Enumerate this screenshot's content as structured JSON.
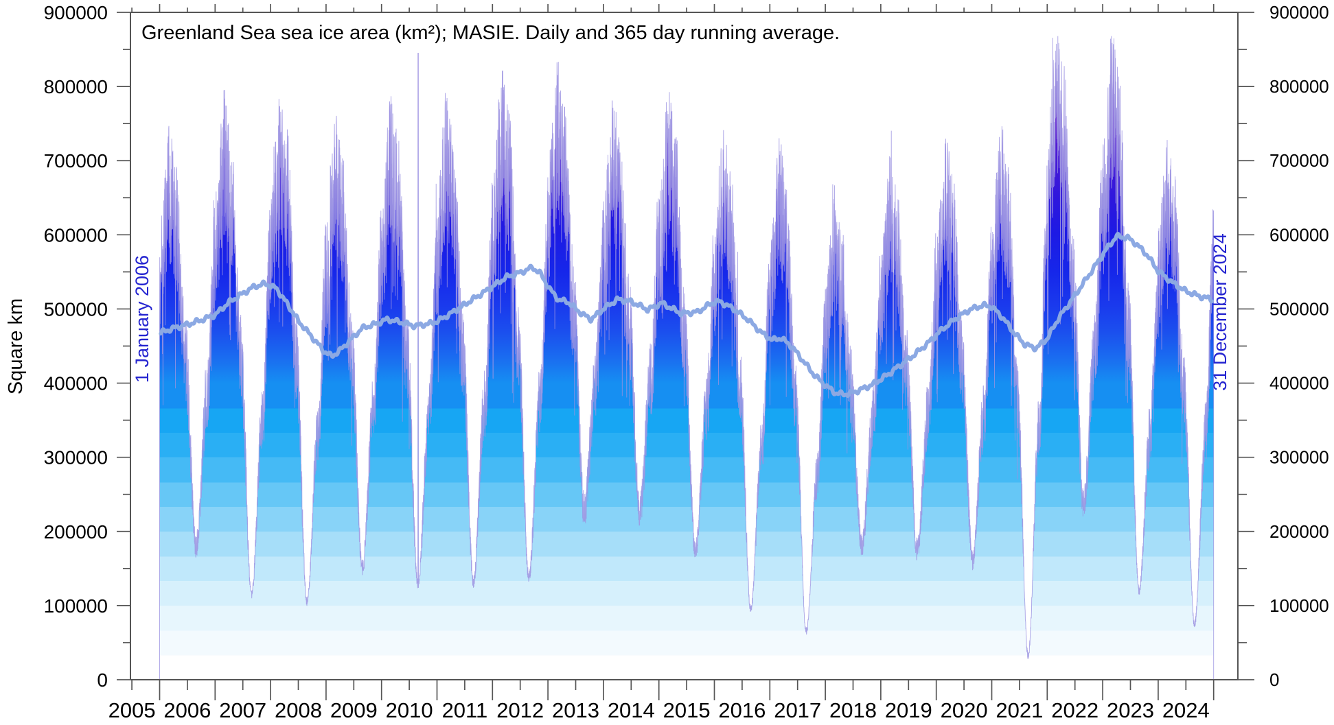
{
  "colors": {
    "annotation_blue": "#2424d0",
    "running_average_line": "#8ca9e3",
    "daily_outline": "#9a92e0",
    "axis": "#555555",
    "text": "#000000",
    "background": "#ffffff"
  },
  "chart_data": {
    "type": "area",
    "title": "Greenland Sea sea ice area (km²); MASIE. Daily and 365 day running average.",
    "xlabel": "",
    "ylabel": "Square km",
    "ylim": [
      0,
      900000
    ],
    "y_ticks": [
      0,
      100000,
      200000,
      300000,
      400000,
      500000,
      600000,
      700000,
      800000,
      900000
    ],
    "y_minor_tick_step": 50000,
    "x_tick_labels": [
      "2005",
      "2006",
      "2007",
      "2008",
      "2009",
      "2010",
      "2011",
      "2012",
      "2013",
      "2014",
      "2015",
      "2016",
      "2017",
      "2018",
      "2019",
      "2020",
      "2021",
      "2022",
      "2023",
      "2024"
    ],
    "x_year_range_of_data": [
      2006.0,
      2025.0
    ],
    "grid": "off",
    "legend": "none",
    "annotations": [
      {
        "text": "1 January 2006",
        "orientation": "vertical",
        "color": "#2424d0"
      },
      {
        "text": "31 December 2024",
        "orientation": "vertical",
        "color": "#2424d0"
      }
    ],
    "series": [
      {
        "name": "Daily sea ice area",
        "style": "vertical gradient filled daily spikes",
        "yearly_envelope": [
          {
            "year": 2006,
            "winter_max": 655000,
            "summer_min": 180000,
            "spike_max": 692000
          },
          {
            "year": 2007,
            "winter_max": 700000,
            "summer_min": 115000,
            "spike_max": 742000
          },
          {
            "year": 2008,
            "winter_max": 700000,
            "summer_min": 105000,
            "spike_max": 737000
          },
          {
            "year": 2009,
            "winter_max": 670000,
            "summer_min": 150000,
            "spike_max": 712000
          },
          {
            "year": 2010,
            "winter_max": 690000,
            "summer_min": 128000,
            "spike_max": 726000
          },
          {
            "year": 2011,
            "winter_max": 700000,
            "summer_min": 132000,
            "spike_max": 772000
          },
          {
            "year": 2012,
            "winter_max": 720000,
            "summer_min": 137000,
            "spike_max": 778000
          },
          {
            "year": 2013,
            "winter_max": 730000,
            "summer_min": 228000,
            "spike_max": 772000
          },
          {
            "year": 2014,
            "winter_max": 690000,
            "summer_min": 228000,
            "spike_max": 731000
          },
          {
            "year": 2015,
            "winter_max": 700000,
            "summer_min": 175000,
            "spike_max": 752000
          },
          {
            "year": 2016,
            "winter_max": 650000,
            "summer_min": 95000,
            "spike_max": 732000
          },
          {
            "year": 2017,
            "winter_max": 640000,
            "summer_min": 65000,
            "spike_max": 760000
          },
          {
            "year": 2018,
            "winter_max": 575000,
            "summer_min": 180000,
            "spike_max": 640000
          },
          {
            "year": 2019,
            "winter_max": 620000,
            "summer_min": 175000,
            "spike_max": 682000
          },
          {
            "year": 2020,
            "winter_max": 650000,
            "summer_min": 160000,
            "spike_max": 702000
          },
          {
            "year": 2021,
            "winter_max": 660000,
            "summer_min": 32000,
            "spike_max": 742000
          },
          {
            "year": 2022,
            "winter_max": 780000,
            "summer_min": 235000,
            "spike_max": 838000
          },
          {
            "year": 2023,
            "winter_max": 770000,
            "summer_min": 120000,
            "spike_max": 820000
          },
          {
            "year": 2024,
            "winter_max": 650000,
            "summer_min": 75000,
            "spike_max": 690000
          },
          {
            "year": 2025,
            "winter_max": 700000,
            "summer_min": 200000,
            "spike_max": 700000
          }
        ],
        "outlier_spikes": [
          {
            "t": 2010.66,
            "value": 845000
          }
        ]
      },
      {
        "name": "365 day running average",
        "points": [
          [
            2006.02,
            468000
          ],
          [
            2006.25,
            474000
          ],
          [
            2006.5,
            479000
          ],
          [
            2006.75,
            485000
          ],
          [
            2007.0,
            492000
          ],
          [
            2007.25,
            509000
          ],
          [
            2007.5,
            521000
          ],
          [
            2007.7,
            530000
          ],
          [
            2007.9,
            534000
          ],
          [
            2008.1,
            528000
          ],
          [
            2008.3,
            507000
          ],
          [
            2008.5,
            484000
          ],
          [
            2008.75,
            462000
          ],
          [
            2008.95,
            444000
          ],
          [
            2009.1,
            436000
          ],
          [
            2009.25,
            444000
          ],
          [
            2009.45,
            459000
          ],
          [
            2009.65,
            474000
          ],
          [
            2009.9,
            480000
          ],
          [
            2010.1,
            486000
          ],
          [
            2010.35,
            482000
          ],
          [
            2010.6,
            477000
          ],
          [
            2010.85,
            480000
          ],
          [
            2011.0,
            483000
          ],
          [
            2011.25,
            494000
          ],
          [
            2011.5,
            506000
          ],
          [
            2011.75,
            518000
          ],
          [
            2012.0,
            530000
          ],
          [
            2012.25,
            543000
          ],
          [
            2012.5,
            549000
          ],
          [
            2012.72,
            556000
          ],
          [
            2012.85,
            549000
          ],
          [
            2013.05,
            525000
          ],
          [
            2013.2,
            512000
          ],
          [
            2013.35,
            510000
          ],
          [
            2013.6,
            494000
          ],
          [
            2013.78,
            486000
          ],
          [
            2014.0,
            500000
          ],
          [
            2014.25,
            513000
          ],
          [
            2014.5,
            510000
          ],
          [
            2014.8,
            499000
          ],
          [
            2015.05,
            508000
          ],
          [
            2015.4,
            494000
          ],
          [
            2015.7,
            496000
          ],
          [
            2015.95,
            508000
          ],
          [
            2016.1,
            510000
          ],
          [
            2016.35,
            500000
          ],
          [
            2016.6,
            486000
          ],
          [
            2016.85,
            468000
          ],
          [
            2017.05,
            458000
          ],
          [
            2017.2,
            461000
          ],
          [
            2017.4,
            449000
          ],
          [
            2017.6,
            430000
          ],
          [
            2017.8,
            411000
          ],
          [
            2018.0,
            397000
          ],
          [
            2018.2,
            386000
          ],
          [
            2018.4,
            385000
          ],
          [
            2018.6,
            390000
          ],
          [
            2018.85,
            398000
          ],
          [
            2019.1,
            410000
          ],
          [
            2019.35,
            424000
          ],
          [
            2019.6,
            438000
          ],
          [
            2019.85,
            454000
          ],
          [
            2020.1,
            472000
          ],
          [
            2020.35,
            487000
          ],
          [
            2020.6,
            499000
          ],
          [
            2020.85,
            505000
          ],
          [
            2021.0,
            503000
          ],
          [
            2021.2,
            488000
          ],
          [
            2021.4,
            468000
          ],
          [
            2021.6,
            452000
          ],
          [
            2021.8,
            447000
          ],
          [
            2022.0,
            460000
          ],
          [
            2022.2,
            487000
          ],
          [
            2022.45,
            513000
          ],
          [
            2022.7,
            540000
          ],
          [
            2022.9,
            562000
          ],
          [
            2023.1,
            584000
          ],
          [
            2023.25,
            598000
          ],
          [
            2023.45,
            596000
          ],
          [
            2023.6,
            588000
          ],
          [
            2023.8,
            573000
          ],
          [
            2024.0,
            551000
          ],
          [
            2024.25,
            536000
          ],
          [
            2024.5,
            524000
          ],
          [
            2024.75,
            517000
          ],
          [
            2024.97,
            513000
          ]
        ]
      }
    ],
    "gradient_stops": [
      {
        "v": 0,
        "c": "#ffffff"
      },
      {
        "v": 33000,
        "c": "#ffffff"
      },
      {
        "v": 33000,
        "c": "#f3fafe"
      },
      {
        "v": 66000,
        "c": "#f3fafe"
      },
      {
        "v": 66000,
        "c": "#e7f6fd"
      },
      {
        "v": 100000,
        "c": "#e7f6fd"
      },
      {
        "v": 100000,
        "c": "#d6f0fc"
      },
      {
        "v": 133000,
        "c": "#d6f0fc"
      },
      {
        "v": 133000,
        "c": "#c0e8fb"
      },
      {
        "v": 166000,
        "c": "#c0e8fb"
      },
      {
        "v": 166000,
        "c": "#a6def9"
      },
      {
        "v": 200000,
        "c": "#a6def9"
      },
      {
        "v": 200000,
        "c": "#88d3f8"
      },
      {
        "v": 233000,
        "c": "#88d3f8"
      },
      {
        "v": 233000,
        "c": "#66c7f6"
      },
      {
        "v": 266000,
        "c": "#66c7f6"
      },
      {
        "v": 266000,
        "c": "#45baf5"
      },
      {
        "v": 300000,
        "c": "#45baf5"
      },
      {
        "v": 300000,
        "c": "#2aaff4"
      },
      {
        "v": 333000,
        "c": "#2aaff4"
      },
      {
        "v": 333000,
        "c": "#17a6f3"
      },
      {
        "v": 366000,
        "c": "#17a6f3"
      },
      {
        "v": 366000,
        "c": "#168ff2"
      },
      {
        "v": 400000,
        "c": "#168ff2"
      },
      {
        "v": 432000,
        "c": "#1a6ef0"
      },
      {
        "v": 468000,
        "c": "#1b50ee"
      },
      {
        "v": 504000,
        "c": "#1a3aed"
      },
      {
        "v": 549000,
        "c": "#1627ea"
      },
      {
        "v": 603000,
        "c": "#1d1ae4"
      },
      {
        "v": 648000,
        "c": "#2e17dd"
      },
      {
        "v": 702000,
        "c": "#4719d6"
      },
      {
        "v": 747000,
        "c": "#6322d1"
      },
      {
        "v": 810000,
        "c": "#7b2bcd"
      },
      {
        "v": 855000,
        "c": "#8a32ca"
      },
      {
        "v": 900000,
        "c": "#9539c8"
      }
    ]
  }
}
